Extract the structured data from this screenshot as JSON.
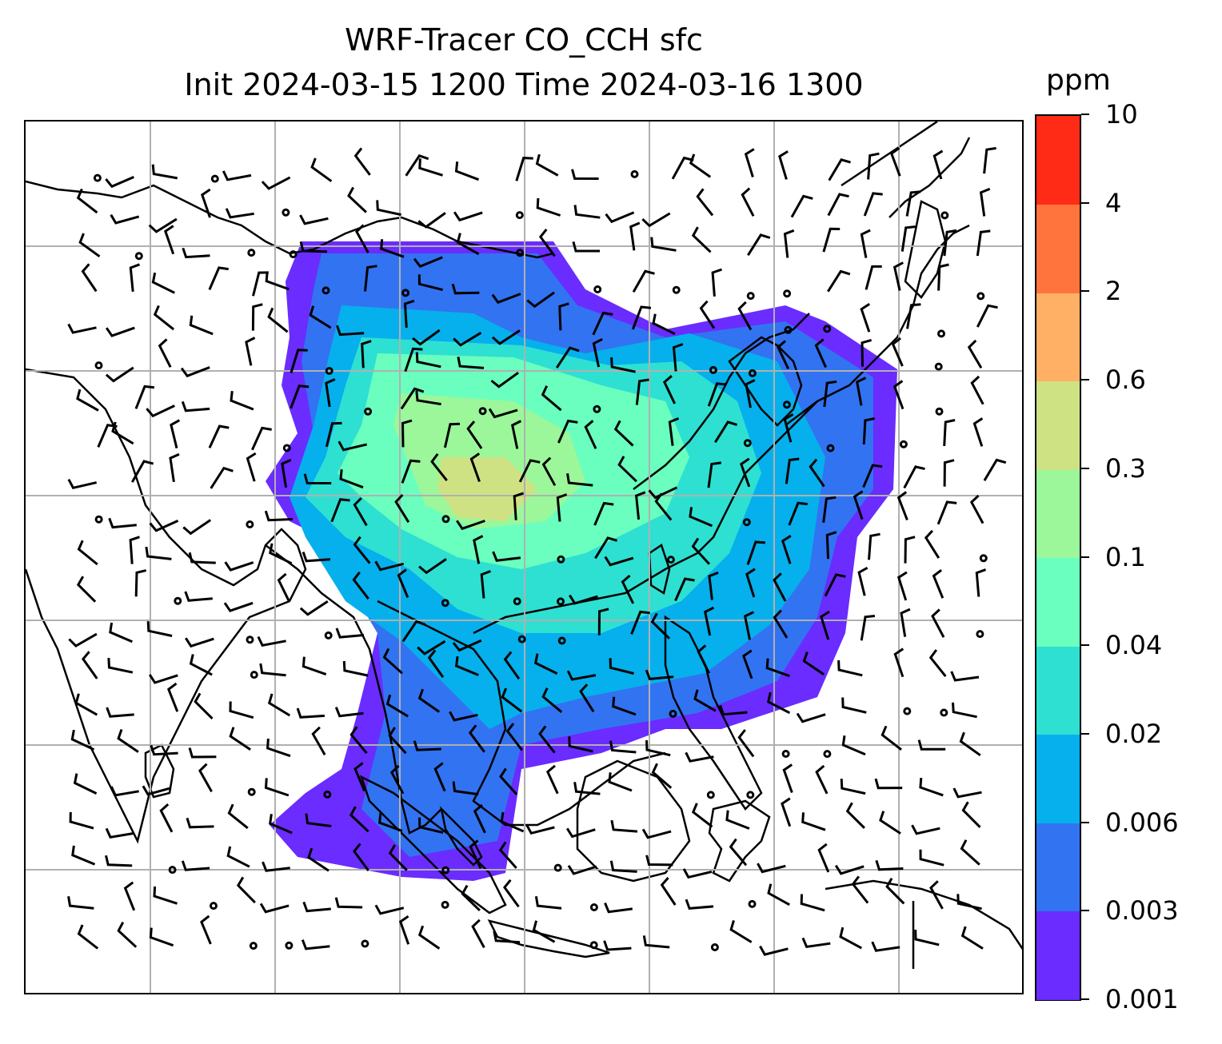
{
  "title": {
    "line1": "WRF-Tracer CO_CCH sfc",
    "line2": "Init 2024-03-15 1200 Time 2024-03-16 1300"
  },
  "colorbar": {
    "unit": "ppm",
    "levels": [
      "0.001",
      "0.003",
      "0.006",
      "0.02",
      "0.04",
      "0.1",
      "0.3",
      "0.6",
      "2",
      "4",
      "10"
    ],
    "colors": [
      "#6a2cff",
      "#3273f2",
      "#06b0ec",
      "#2ee0d2",
      "#6affbf",
      "#9bf79a",
      "#cfe283",
      "#ffb064",
      "#ff743c",
      "#ff2b17"
    ]
  },
  "map": {
    "gridlines": true,
    "gridline_color": "#b0b0b0",
    "coastline_color": "#000000",
    "wind_barb_color": "#000000",
    "field": "CO_CCH tracer concentration",
    "plume_levels_present": [
      "0.001",
      "0.003",
      "0.006",
      "0.02",
      "0.04",
      "0.1",
      "0.3"
    ]
  }
}
